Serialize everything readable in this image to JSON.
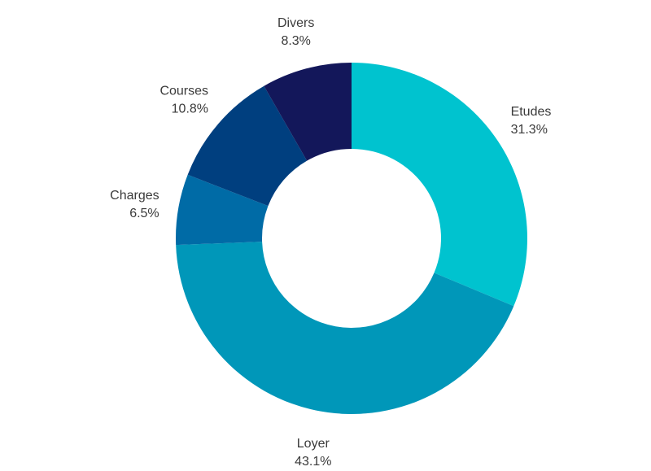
{
  "chart_data": {
    "type": "pie",
    "donut": true,
    "start_angle_deg": 0,
    "direction": "clockwise",
    "slices": [
      {
        "label": "Etudes",
        "value": 31.3,
        "value_label": "31.3%",
        "color": "#00C3CF"
      },
      {
        "label": "Loyer",
        "value": 43.1,
        "value_label": "43.1%",
        "color": "#0097B9"
      },
      {
        "label": "Charges",
        "value": 6.5,
        "value_label": "6.5%",
        "color": "#006BA6"
      },
      {
        "label": "Courses",
        "value": 10.8,
        "value_label": "10.8%",
        "color": "#003F7F"
      },
      {
        "label": "Divers",
        "value": 8.3,
        "value_label": "8.3%",
        "color": "#13175A"
      }
    ]
  }
}
